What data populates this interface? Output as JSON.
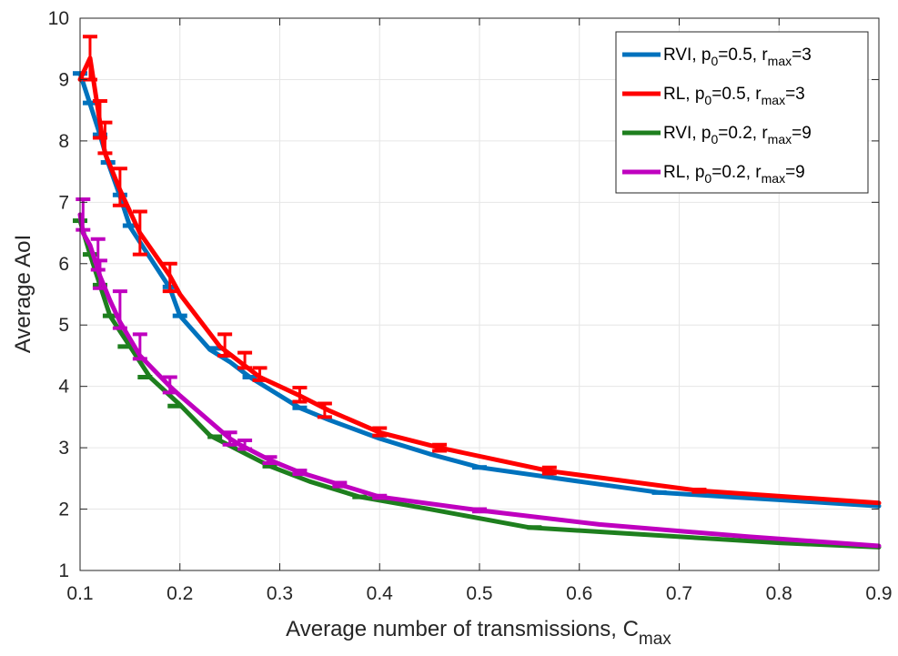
{
  "chart_data": {
    "type": "line",
    "xlabel": "Average number of transmissions, C",
    "xlabel_sub": "max",
    "ylabel": "Average AoI",
    "xlim": [
      0.1,
      0.9
    ],
    "ylim": [
      1,
      10
    ],
    "xticks": [
      "0.1",
      "0.2",
      "0.3",
      "0.4",
      "0.5",
      "0.6",
      "0.7",
      "0.8",
      "0.9"
    ],
    "yticks": [
      "1",
      "2",
      "3",
      "4",
      "5",
      "6",
      "7",
      "8",
      "9",
      "10"
    ],
    "grid": true,
    "legend_position": "top-right",
    "series": [
      {
        "name_parts": [
          "RVI, p",
          "0",
          "=0.5, r",
          "max",
          "=3"
        ],
        "color": "#0072BD",
        "x": [
          0.1,
          0.11,
          0.12,
          0.128,
          0.14,
          0.15,
          0.17,
          0.19,
          0.2,
          0.23,
          0.25,
          0.27,
          0.3,
          0.32,
          0.35,
          0.4,
          0.45,
          0.5,
          0.6,
          0.68,
          0.75,
          0.8,
          0.9
        ],
        "y": [
          9.1,
          8.6,
          8.1,
          7.65,
          7.1,
          6.6,
          6.1,
          5.6,
          5.15,
          4.6,
          4.4,
          4.15,
          3.85,
          3.65,
          3.45,
          3.15,
          2.9,
          2.68,
          2.45,
          2.27,
          2.2,
          2.15,
          2.05
        ],
        "err_x": [
          0.1,
          0.11,
          0.12,
          0.128,
          0.14,
          0.15,
          0.19,
          0.2,
          0.235,
          0.27,
          0.32,
          0.5,
          0.68
        ],
        "err_y": [
          9.1,
          8.62,
          8.1,
          7.65,
          7.12,
          6.62,
          5.62,
          5.15,
          4.62,
          4.15,
          3.65,
          2.68,
          2.27
        ]
      },
      {
        "name_parts": [
          "RL, p",
          "0",
          "=0.5, r",
          "max",
          "=3"
        ],
        "color": "#FF0000",
        "x": [
          0.1,
          0.11,
          0.12,
          0.125,
          0.14,
          0.16,
          0.19,
          0.2,
          0.24,
          0.26,
          0.28,
          0.32,
          0.35,
          0.4,
          0.46,
          0.57,
          0.72,
          0.9
        ],
        "y": [
          9.0,
          9.35,
          8.3,
          7.8,
          7.2,
          6.5,
          5.8,
          5.5,
          4.65,
          4.4,
          4.15,
          3.85,
          3.6,
          3.25,
          3.0,
          2.62,
          2.3,
          2.1
        ],
        "err_x": [
          0.11,
          0.12,
          0.125,
          0.14,
          0.16,
          0.19,
          0.245,
          0.265,
          0.28,
          0.32,
          0.345,
          0.4,
          0.46,
          0.57,
          0.72
        ],
        "err_lo": [
          9.0,
          8.05,
          7.8,
          6.95,
          6.15,
          5.55,
          4.5,
          4.3,
          4.1,
          3.75,
          3.5,
          3.2,
          2.95,
          2.58,
          2.28
        ],
        "err_hi": [
          9.7,
          8.65,
          8.3,
          7.55,
          6.85,
          6.0,
          4.85,
          4.55,
          4.3,
          3.98,
          3.72,
          3.32,
          3.05,
          2.68,
          2.32
        ]
      },
      {
        "name_parts": [
          "RVI, p",
          "0",
          "=0.2, r",
          "max",
          "=9"
        ],
        "color": "#1E7F1E",
        "x": [
          0.1,
          0.11,
          0.12,
          0.13,
          0.14,
          0.15,
          0.17,
          0.2,
          0.23,
          0.26,
          0.29,
          0.33,
          0.38,
          0.45,
          0.55,
          0.65,
          0.75,
          0.8,
          0.9
        ],
        "y": [
          6.7,
          6.15,
          5.65,
          5.15,
          4.9,
          4.65,
          4.15,
          3.7,
          3.2,
          2.95,
          2.7,
          2.45,
          2.2,
          2.0,
          1.7,
          1.6,
          1.5,
          1.45,
          1.38
        ],
        "err_x": [
          0.1,
          0.11,
          0.12,
          0.13,
          0.145,
          0.165,
          0.195,
          0.235,
          0.29,
          0.38,
          0.555
        ],
        "err_y": [
          6.7,
          6.15,
          5.65,
          5.15,
          4.65,
          4.15,
          3.68,
          3.18,
          2.7,
          2.2,
          1.7
        ]
      },
      {
        "name_parts": [
          "RL, p",
          "0",
          "=0.2, r",
          "max",
          "=9"
        ],
        "color": "#BF00BF",
        "x": [
          0.1,
          0.103,
          0.11,
          0.12,
          0.13,
          0.14,
          0.16,
          0.19,
          0.2,
          0.25,
          0.26,
          0.29,
          0.32,
          0.36,
          0.4,
          0.5,
          0.62,
          0.77,
          0.9
        ],
        "y": [
          6.8,
          6.5,
          6.3,
          5.8,
          5.4,
          5.05,
          4.5,
          4.0,
          3.85,
          3.15,
          3.05,
          2.8,
          2.6,
          2.4,
          2.2,
          1.98,
          1.75,
          1.55,
          1.4
        ],
        "err_x": [
          0.103,
          0.118,
          0.12,
          0.14,
          0.16,
          0.19,
          0.25,
          0.265,
          0.29,
          0.32,
          0.36,
          0.4,
          0.5
        ],
        "err_lo": [
          6.55,
          5.9,
          5.6,
          4.95,
          4.45,
          3.9,
          3.05,
          2.98,
          2.75,
          2.57,
          2.37,
          2.18,
          1.96
        ],
        "err_hi": [
          7.05,
          6.4,
          6.05,
          5.55,
          4.85,
          4.15,
          3.25,
          3.12,
          2.85,
          2.63,
          2.43,
          2.22,
          2.0
        ]
      }
    ]
  }
}
